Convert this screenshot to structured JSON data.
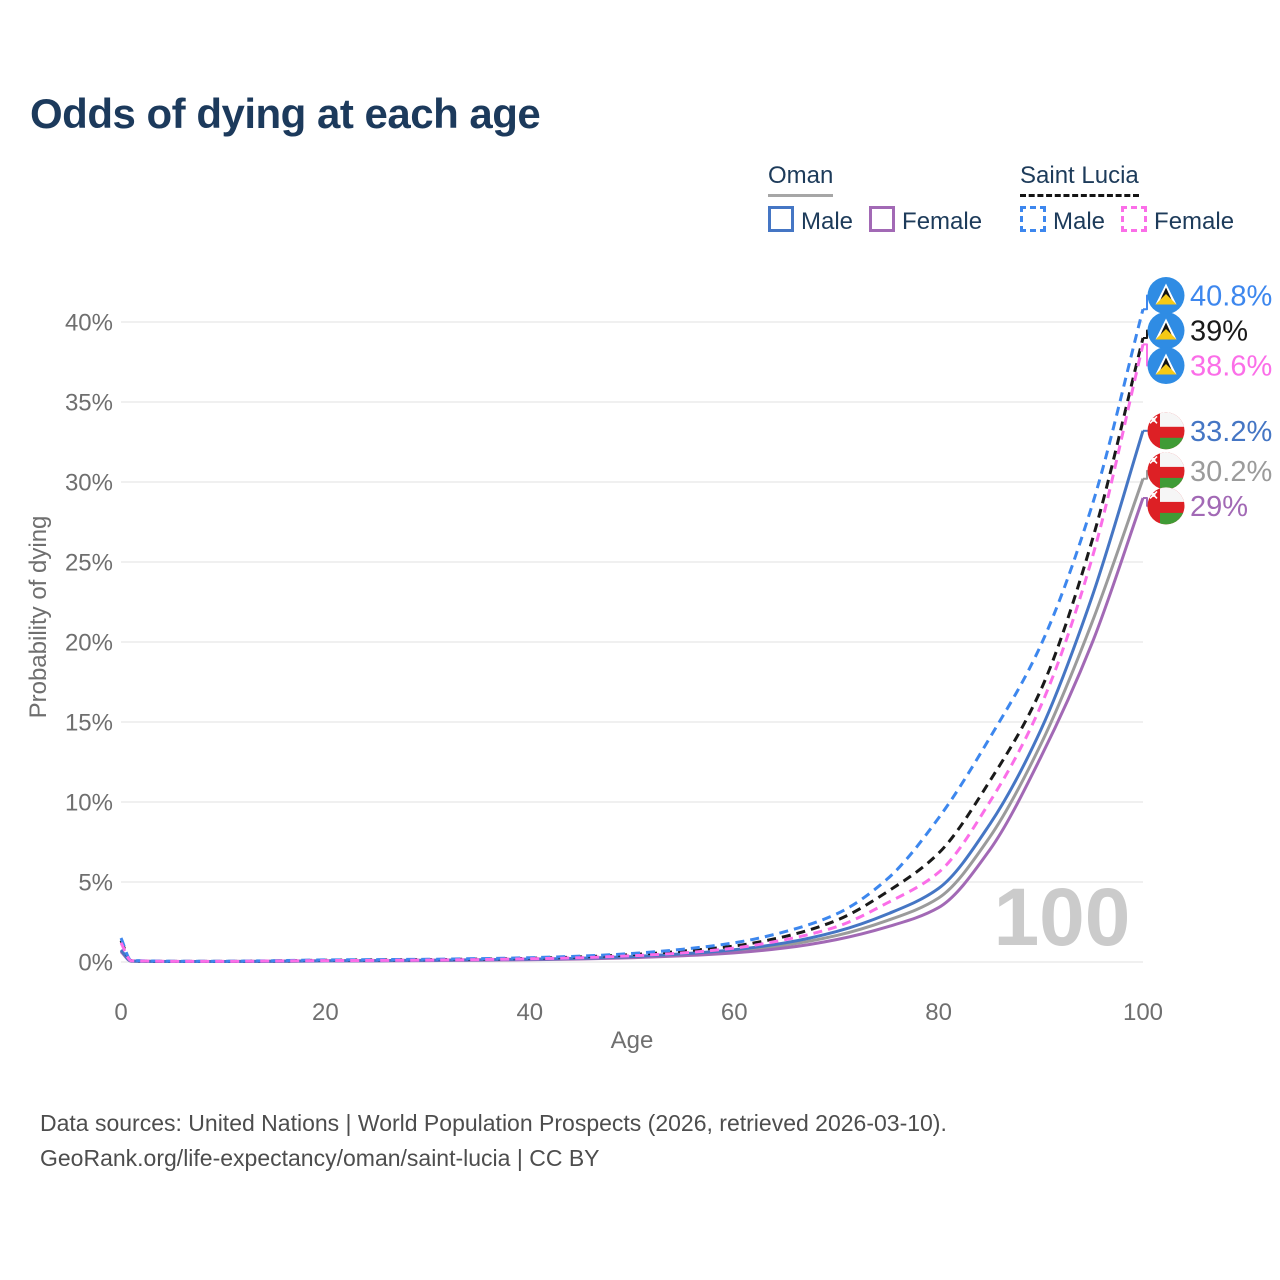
{
  "title": "Odds of dying at each age",
  "legend": {
    "groups": [
      {
        "label": "Oman",
        "line_style": "solid",
        "underline_color": "#a6a6a6",
        "items": [
          {
            "label": "Male",
            "color": "#4576c4"
          },
          {
            "label": "Female",
            "color": "#a269b5"
          }
        ]
      },
      {
        "label": "Saint Lucia",
        "line_style": "dashed",
        "underline_color": "#141414",
        "items": [
          {
            "label": "Male",
            "color": "#3d87ee"
          },
          {
            "label": "Female",
            "color": "#fb6ee8"
          }
        ]
      }
    ]
  },
  "chart_data": {
    "type": "line",
    "title": "Odds of dying at each age",
    "xlabel": "Age",
    "ylabel": "Probability of dying",
    "xlim": [
      0,
      100
    ],
    "ylim_pct": [
      0,
      42
    ],
    "grid": true,
    "xticks": [
      0,
      20,
      40,
      60,
      80,
      100
    ],
    "yticks_pct": [
      0,
      5,
      10,
      15,
      20,
      25,
      30,
      35,
      40
    ],
    "ytick_labels": [
      "0%",
      "5%",
      "10%",
      "15%",
      "20%",
      "25%",
      "30%",
      "35%",
      "40%"
    ],
    "watermark": "100",
    "x_ages": [
      0,
      1,
      5,
      10,
      15,
      20,
      25,
      30,
      35,
      40,
      45,
      50,
      55,
      60,
      65,
      70,
      75,
      80,
      85,
      90,
      95,
      100
    ],
    "series": [
      {
        "name": "Oman Both sexes",
        "country": "Oman",
        "sex": "Both",
        "flag": "oman",
        "line_style": "solid",
        "color": "#9b9b9b",
        "end_label": "30.2%",
        "values_pct": [
          0.7,
          0.06,
          0.03,
          0.03,
          0.05,
          0.07,
          0.08,
          0.1,
          0.12,
          0.16,
          0.22,
          0.31,
          0.45,
          0.67,
          1.05,
          1.65,
          2.6,
          4.0,
          7.8,
          13.6,
          21.2,
          30.2
        ]
      },
      {
        "name": "Oman Female",
        "country": "Oman",
        "sex": "Female",
        "flag": "oman",
        "line_style": "solid",
        "color": "#a269b5",
        "end_label": "29%",
        "values_pct": [
          0.65,
          0.05,
          0.03,
          0.03,
          0.04,
          0.06,
          0.07,
          0.09,
          0.11,
          0.14,
          0.19,
          0.27,
          0.39,
          0.57,
          0.88,
          1.4,
          2.2,
          3.4,
          7.0,
          12.8,
          19.9,
          29.0
        ]
      },
      {
        "name": "Oman Male",
        "country": "Oman",
        "sex": "Male",
        "flag": "oman",
        "line_style": "solid",
        "color": "#4576c4",
        "end_label": "33.2%",
        "values_pct": [
          0.75,
          0.06,
          0.03,
          0.03,
          0.05,
          0.08,
          0.09,
          0.11,
          0.14,
          0.18,
          0.24,
          0.34,
          0.51,
          0.77,
          1.2,
          1.9,
          3.0,
          4.6,
          8.6,
          14.5,
          22.8,
          33.2
        ]
      },
      {
        "name": "Saint Lucia Both sexes",
        "country": "Saint Lucia",
        "sex": "Both",
        "flag": "saint-lucia",
        "line_style": "dashed",
        "color": "#1a1a1a",
        "end_label": "39%",
        "values_pct": [
          1.35,
          0.09,
          0.04,
          0.04,
          0.07,
          0.11,
          0.13,
          0.15,
          0.18,
          0.23,
          0.32,
          0.46,
          0.68,
          1.0,
          1.6,
          2.6,
          4.4,
          6.8,
          11.3,
          17.0,
          26.3,
          39.0
        ]
      },
      {
        "name": "Saint Lucia Male",
        "country": "Saint Lucia",
        "sex": "Male",
        "flag": "saint-lucia",
        "line_style": "dashed",
        "color": "#3d87ee",
        "end_label": "40.8%",
        "values_pct": [
          1.5,
          0.1,
          0.05,
          0.05,
          0.08,
          0.13,
          0.15,
          0.17,
          0.21,
          0.27,
          0.37,
          0.53,
          0.8,
          1.2,
          1.9,
          3.0,
          5.2,
          9.0,
          14.0,
          19.8,
          28.5,
          40.8
        ]
      },
      {
        "name": "Saint Lucia Female",
        "country": "Saint Lucia",
        "sex": "Female",
        "flag": "saint-lucia",
        "line_style": "dashed",
        "color": "#fb6ee8",
        "end_label": "38.6%",
        "values_pct": [
          1.2,
          0.08,
          0.04,
          0.04,
          0.06,
          0.09,
          0.1,
          0.12,
          0.15,
          0.2,
          0.27,
          0.39,
          0.57,
          0.87,
          1.4,
          2.2,
          3.7,
          5.6,
          10.0,
          16.0,
          25.2,
          38.6
        ]
      }
    ]
  },
  "footer": {
    "line1": "Data sources: United Nations | World Population Prospects (2026, retrieved 2026-03-10).",
    "line2": "GeoRank.org/life-expectancy/oman/saint-lucia | CC BY"
  }
}
